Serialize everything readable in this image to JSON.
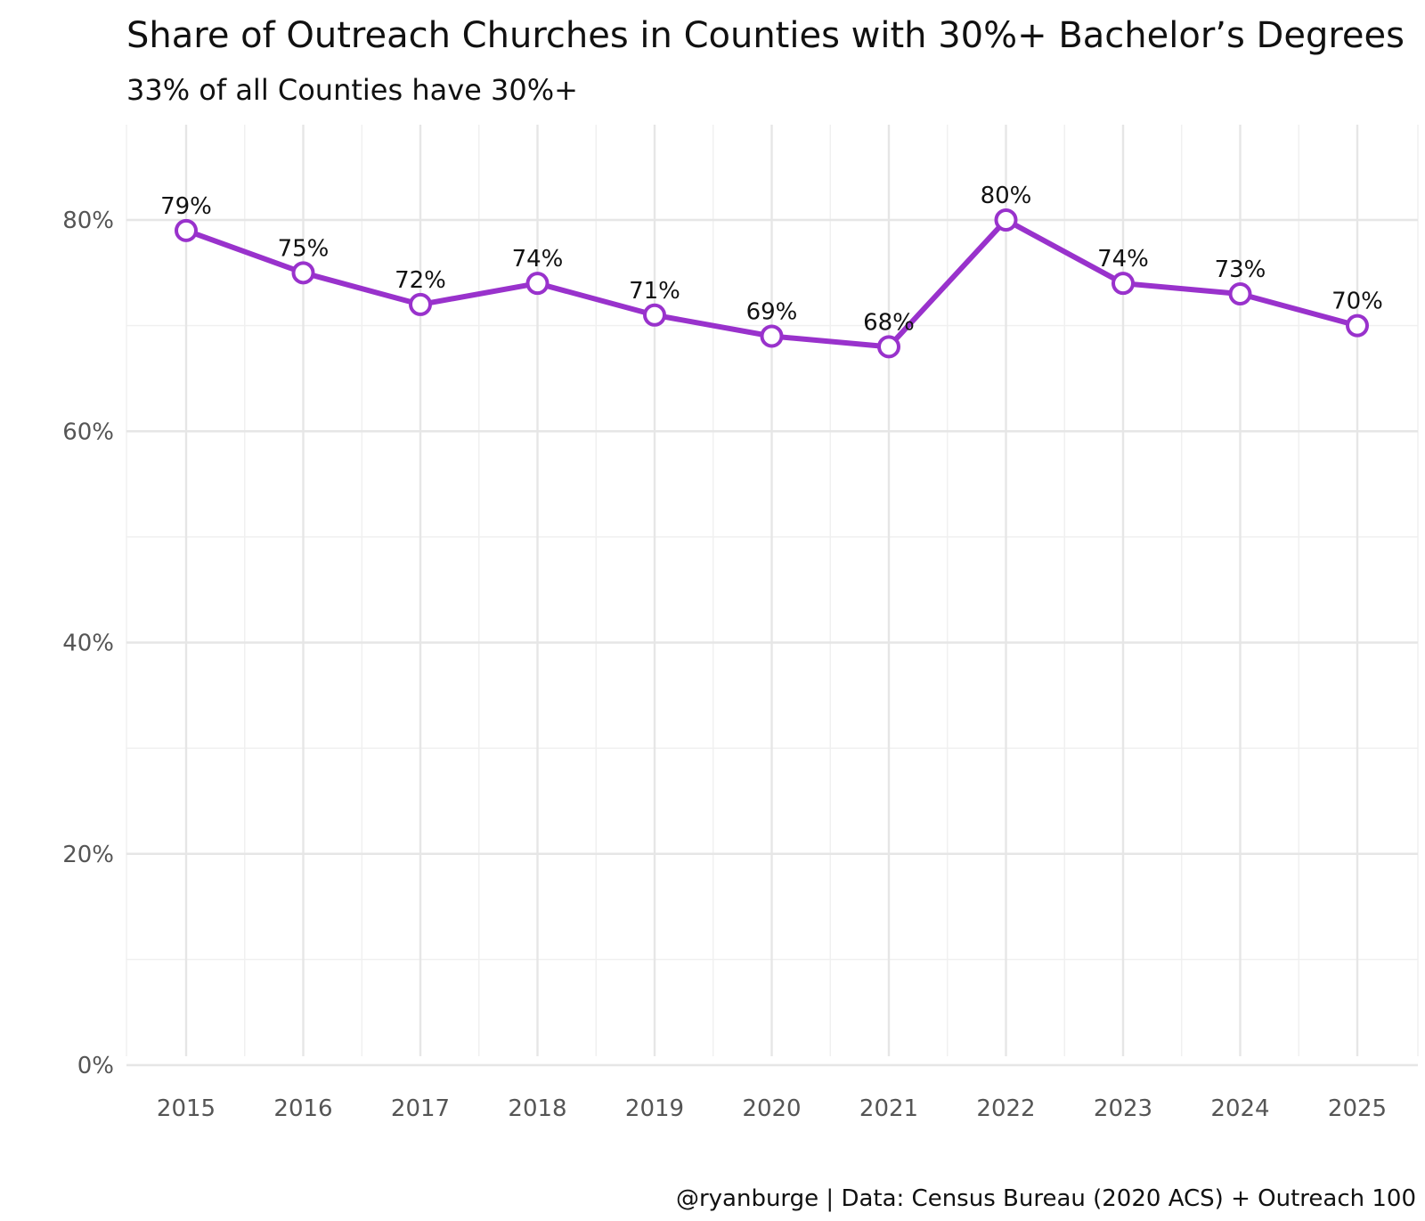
{
  "chart_data": {
    "type": "line",
    "title": "Share of Outreach Churches in Counties with 30%+ Bachelor’s Degrees",
    "subtitle": "33% of all Counties have 30%+",
    "caption": "@ryanburge | Data: Census Bureau (2020 ACS) + Outreach 100",
    "xlabel": "",
    "ylabel": "",
    "categories": [
      "2015",
      "2016",
      "2017",
      "2018",
      "2019",
      "2020",
      "2021",
      "2022",
      "2023",
      "2024",
      "2025"
    ],
    "values": [
      79,
      75,
      72,
      74,
      71,
      69,
      68,
      80,
      74,
      73,
      70
    ],
    "data_labels": [
      "79%",
      "75%",
      "72%",
      "74%",
      "71%",
      "69%",
      "68%",
      "80%",
      "74%",
      "73%",
      "70%"
    ],
    "ylim": [
      0,
      88
    ],
    "y_ticks": [
      0,
      20,
      40,
      60,
      80
    ],
    "y_tick_labels": [
      "0%",
      "20%",
      "40%",
      "60%",
      "80%"
    ],
    "grid": true,
    "legend": "none",
    "colors": {
      "line": "#9932cc",
      "marker_fill": "#ffffff",
      "marker_stroke": "#9932cc"
    }
  }
}
